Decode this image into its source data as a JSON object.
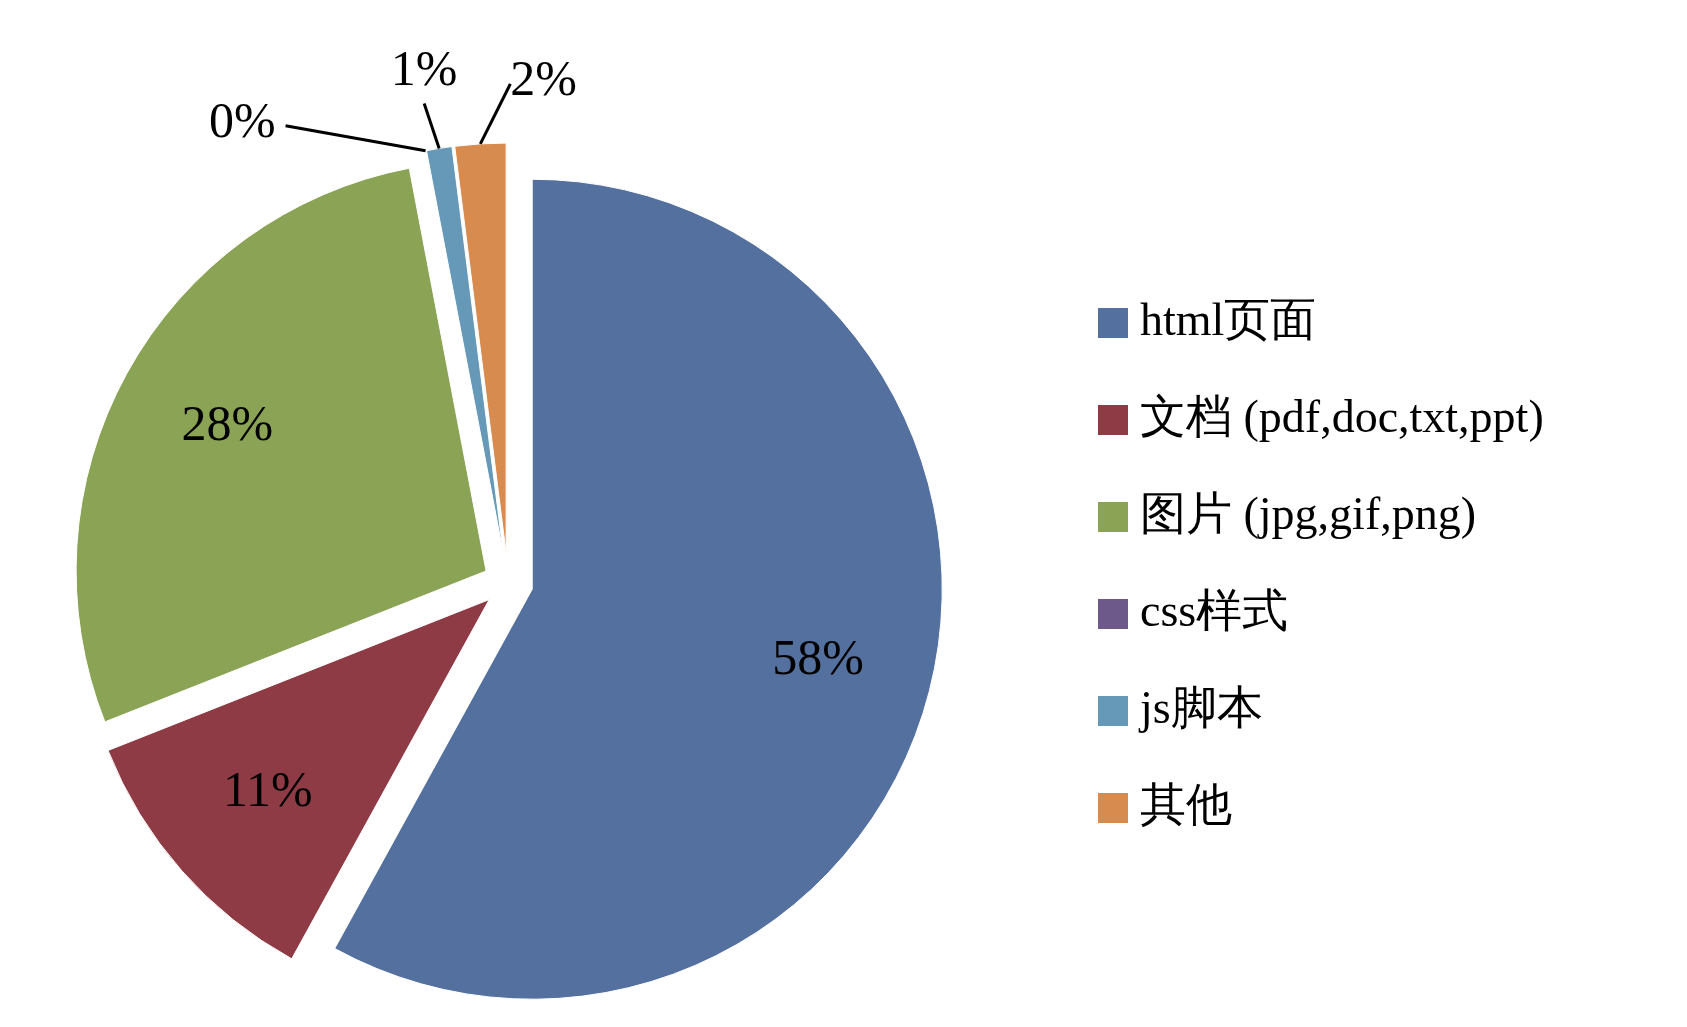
{
  "chart_data": {
    "type": "pie",
    "categories": [
      "html页面",
      "文档 (pdf,doc,txt,ppt)",
      "图片 (jpg,gif,png)",
      "css样式",
      "js脚本",
      "其他"
    ],
    "values": [
      58,
      11,
      28,
      0,
      1,
      2
    ],
    "colors": [
      "#54709f",
      "#8e3b45",
      "#8ba355",
      "#6e5a8a",
      "#6699b8",
      "#d88b4f"
    ],
    "value_labels": [
      "58%",
      "11%",
      "28%",
      "0%",
      "1%",
      "2%"
    ],
    "legend": "right"
  }
}
